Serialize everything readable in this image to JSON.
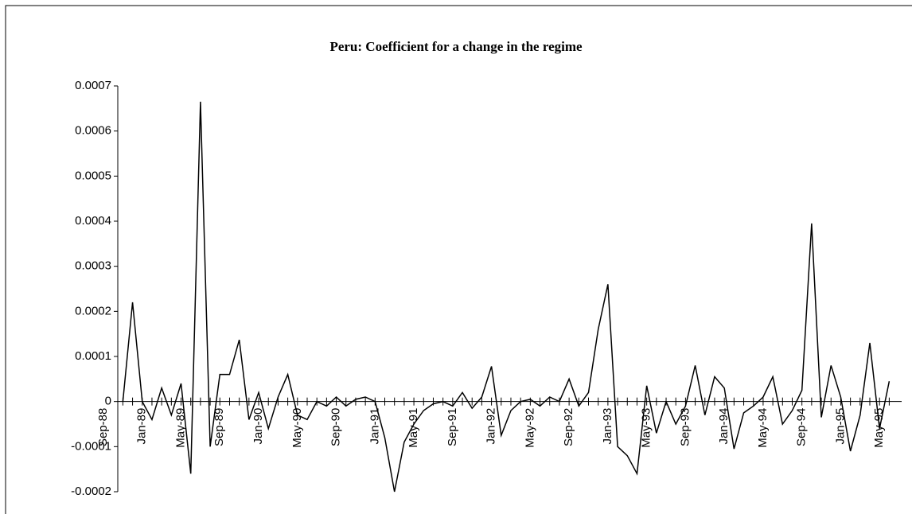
{
  "chart_data": {
    "type": "line",
    "title": "Peru: Coefficient for a change in the regime",
    "categories": [
      "Sep-88",
      null,
      null,
      null,
      "Jan-89",
      null,
      null,
      null,
      "May-89",
      null,
      null,
      null,
      "Sep-89",
      null,
      null,
      null,
      "Jan-90",
      null,
      null,
      null,
      "May-90",
      null,
      null,
      null,
      "Sep-90",
      null,
      null,
      null,
      "Jan-91",
      null,
      null,
      null,
      "May-91",
      null,
      null,
      null,
      "Sep-91",
      null,
      null,
      null,
      "Jan-92",
      null,
      null,
      null,
      "May-92",
      null,
      null,
      null,
      "Sep-92",
      null,
      null,
      null,
      "Jan-93",
      null,
      null,
      null,
      "May-93",
      null,
      null,
      null,
      "Sep-93",
      null,
      null,
      null,
      "Jan-94",
      null,
      null,
      null,
      "May-94",
      null,
      null,
      null,
      "Sep-94",
      null,
      null,
      null,
      "Jan-95",
      null,
      null,
      null,
      "May-95",
      null
    ],
    "values": [
      null,
      null,
      0,
      0.00022,
      0,
      -4e-05,
      3e-05,
      -3e-05,
      4e-05,
      -0.00016,
      0.000665,
      -0.0001,
      6e-05,
      6e-05,
      0.000137,
      -4e-05,
      2e-05,
      -6e-05,
      1e-05,
      6e-05,
      -3e-05,
      -4e-05,
      0,
      -1e-05,
      1e-05,
      -1e-05,
      5e-06,
      1e-05,
      0,
      -8e-05,
      -0.0002,
      -9e-05,
      -5e-05,
      -2e-05,
      -5e-06,
      0,
      -1e-05,
      2e-05,
      -1.5e-05,
      1e-05,
      7.8e-05,
      -7.5e-05,
      -2e-05,
      0,
      5e-06,
      -1e-05,
      1e-05,
      0,
      5e-05,
      -1e-05,
      2e-05,
      0.00016,
      0.00026,
      -0.0001,
      -0.00012,
      -0.00016,
      3.5e-05,
      -7e-05,
      0,
      -5e-05,
      -1e-05,
      8e-05,
      -3e-05,
      5.5e-05,
      3e-05,
      -0.000105,
      -2.5e-05,
      -1e-05,
      1e-05,
      5.5e-05,
      -5e-05,
      -2e-05,
      2.5e-05,
      0.000395,
      -3.5e-05,
      8e-05,
      1e-05,
      -0.00011,
      -3e-05,
      0.00013,
      -6e-05,
      4.5e-05
    ],
    "color": "#000000",
    "ylim": [
      -0.0002,
      0.0007
    ],
    "yticks": [
      -0.0002,
      -0.0001,
      0,
      0.0001,
      0.0002,
      0.0003,
      0.0004,
      0.0005,
      0.0006,
      0.0007
    ],
    "grid": false
  }
}
